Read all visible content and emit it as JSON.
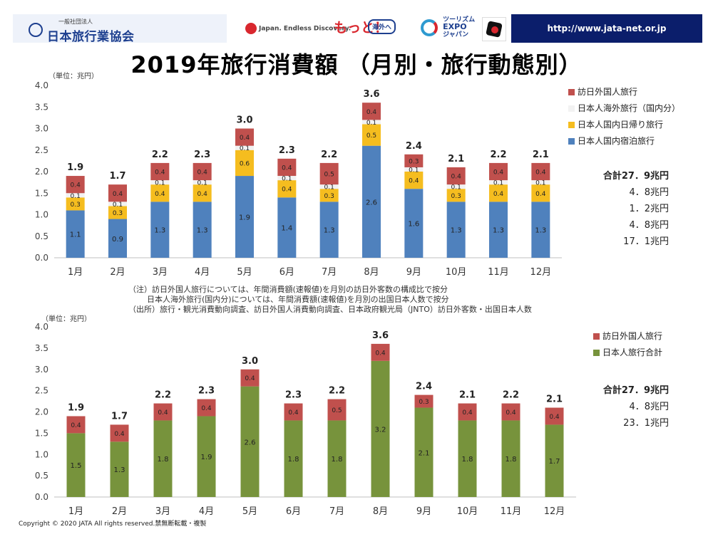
{
  "header": {
    "org_sub": "一般社団法人",
    "org_mark": "JATA",
    "org_name": "日本旅行業協会",
    "logo_japan": "Japan. Endless Discovery.",
    "logo_motto": "もっと！",
    "logo_motto_box": "海外へ",
    "logo_expo_1": "ツーリズム",
    "logo_expo_2": "EXPO",
    "logo_expo_3": "ジャパン",
    "url": "http://www.jata-net.or.jp"
  },
  "page": {
    "title": "2019年旅行消費額 （月別・旅行動態別）",
    "copyright": "Copyright © 2020 JATA All rights reserved.禁無断転載・複製"
  },
  "notes": [
    "（注）訪日外国人旅行については、年間消費額(速報値)を月別の訪日外客数の構成比で按分",
    "日本人海外旅行(国内分)については、年間消費額(速報値)を月別の出国日本人数で按分",
    "（出所）旅行・観光消費動向調査、訪日外国人消費動向調査、日本政府観光局（JNTO）訪日外客数・出国日本人数"
  ],
  "colors": {
    "inbound": "#c0504d",
    "outbound": "#f2f2f2",
    "daytrip": "#f5bd1f",
    "overnight": "#4f81bd",
    "japanese_total": "#77933c"
  },
  "totals1": {
    "main": "合計27．9兆円",
    "items": [
      "4．8兆円",
      "1．2兆円",
      "4．8兆円",
      "17．1兆円"
    ]
  },
  "totals2": {
    "main": "合計27．9兆円",
    "items": [
      "4．8兆円",
      "23．1兆円"
    ]
  },
  "chart_data": [
    {
      "type": "bar",
      "stacked": true,
      "unit_label": "（単位：兆円）",
      "categories": [
        "1月",
        "2月",
        "3月",
        "4月",
        "5月",
        "6月",
        "7月",
        "8月",
        "9月",
        "10月",
        "11月",
        "12月"
      ],
      "ylim": [
        0,
        4.0
      ],
      "yticks": [
        "0.0",
        "0.5",
        "1.0",
        "1.5",
        "2.0",
        "2.5",
        "3.0",
        "3.5",
        "4.0"
      ],
      "legend_position": "right",
      "series": [
        {
          "name": "日本人国内宿泊旅行",
          "color": "#4f81bd",
          "values": [
            1.1,
            0.9,
            1.3,
            1.3,
            1.9,
            1.4,
            1.3,
            2.6,
            1.6,
            1.3,
            1.3,
            1.3
          ]
        },
        {
          "name": "日本人国内日帰り旅行",
          "color": "#f5bd1f",
          "values": [
            0.3,
            0.3,
            0.4,
            0.4,
            0.6,
            0.4,
            0.3,
            0.5,
            0.4,
            0.3,
            0.4,
            0.4
          ]
        },
        {
          "name": "日本人海外旅行（国内分）",
          "color": "#f2f2f2",
          "values": [
            0.1,
            0.1,
            0.1,
            0.1,
            0.1,
            0.1,
            0.1,
            0.1,
            0.1,
            0.1,
            0.1,
            0.1
          ]
        },
        {
          "name": "訪日外国人旅行",
          "color": "#c0504d",
          "values": [
            0.4,
            0.4,
            0.4,
            0.4,
            0.4,
            0.4,
            0.5,
            0.4,
            0.3,
            0.4,
            0.4,
            0.4
          ]
        }
      ],
      "totals": [
        "1.9",
        "1.7",
        "2.2",
        "2.3",
        "3.0",
        "2.3",
        "2.2",
        "3.6",
        "2.4",
        "2.1",
        "2.2",
        "2.1"
      ],
      "legend_order": [
        "訪日外国人旅行",
        "日本人海外旅行（国内分）",
        "日本人国内日帰り旅行",
        "日本人国内宿泊旅行"
      ]
    },
    {
      "type": "bar",
      "stacked": true,
      "unit_label": "（単位：兆円）",
      "categories": [
        "1月",
        "2月",
        "3月",
        "4月",
        "5月",
        "6月",
        "7月",
        "8月",
        "9月",
        "10月",
        "11月",
        "12月"
      ],
      "ylim": [
        0,
        4.0
      ],
      "yticks": [
        "0.0",
        "0.5",
        "1.0",
        "1.5",
        "2.0",
        "2.5",
        "3.0",
        "3.5",
        "4.0"
      ],
      "legend_position": "right",
      "series": [
        {
          "name": "日本人旅行合計",
          "color": "#77933c",
          "values": [
            1.5,
            1.3,
            1.8,
            1.9,
            2.6,
            1.8,
            1.8,
            3.2,
            2.1,
            1.8,
            1.8,
            1.7
          ]
        },
        {
          "name": "訪日外国人旅行",
          "color": "#c0504d",
          "values": [
            0.4,
            0.4,
            0.4,
            0.4,
            0.4,
            0.4,
            0.5,
            0.4,
            0.3,
            0.4,
            0.4,
            0.4
          ]
        }
      ],
      "totals": [
        "1.9",
        "1.7",
        "2.2",
        "2.3",
        "3.0",
        "2.3",
        "2.2",
        "3.6",
        "2.4",
        "2.1",
        "2.2",
        "2.1"
      ],
      "legend_order": [
        "訪日外国人旅行",
        "日本人旅行合計"
      ]
    }
  ]
}
